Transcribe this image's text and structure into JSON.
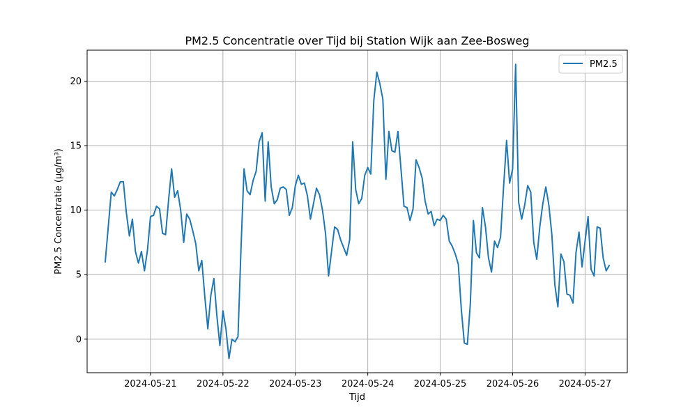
{
  "chart_data": {
    "type": "line",
    "title": "PM2.5 Concentratie over Tijd bij Station Wijk aan Zee-Bosweg",
    "xlabel": "Tijd",
    "ylabel": "PM2.5 Concentratie (µg/m³)",
    "xlim": [
      "2024-05-20T03:00",
      "2024-05-27T14:00"
    ],
    "ylim": [
      -2.6,
      22.4
    ],
    "x_ticks": [
      "2024-05-21",
      "2024-05-22",
      "2024-05-23",
      "2024-05-24",
      "2024-05-25",
      "2024-05-26",
      "2024-05-27"
    ],
    "y_ticks": [
      0,
      5,
      10,
      15,
      20
    ],
    "y_tick_labels": [
      "0",
      "5",
      "10",
      "15",
      "20"
    ],
    "grid": true,
    "legend_position": "top-right",
    "line_color": "#1f77b4",
    "series": [
      {
        "name": "PM2.5",
        "color": "#1f77b4",
        "x": [
          "2024-05-20T09:00",
          "2024-05-20T10:00",
          "2024-05-20T11:00",
          "2024-05-20T12:00",
          "2024-05-20T13:00",
          "2024-05-20T14:00",
          "2024-05-20T15:00",
          "2024-05-20T16:00",
          "2024-05-20T17:00",
          "2024-05-20T18:00",
          "2024-05-20T19:00",
          "2024-05-20T20:00",
          "2024-05-20T21:00",
          "2024-05-20T22:00",
          "2024-05-20T23:00",
          "2024-05-21T00:00",
          "2024-05-21T01:00",
          "2024-05-21T02:00",
          "2024-05-21T03:00",
          "2024-05-21T04:00",
          "2024-05-21T05:00",
          "2024-05-21T06:00",
          "2024-05-21T07:00",
          "2024-05-21T08:00",
          "2024-05-21T09:00",
          "2024-05-21T10:00",
          "2024-05-21T11:00",
          "2024-05-21T12:00",
          "2024-05-21T13:00",
          "2024-05-21T14:00",
          "2024-05-21T15:00",
          "2024-05-21T16:00",
          "2024-05-21T17:00",
          "2024-05-21T18:00",
          "2024-05-21T19:00",
          "2024-05-21T20:00",
          "2024-05-21T21:00",
          "2024-05-21T22:00",
          "2024-05-21T23:00",
          "2024-05-22T00:00",
          "2024-05-22T01:00",
          "2024-05-22T02:00",
          "2024-05-22T03:00",
          "2024-05-22T04:00",
          "2024-05-22T05:00",
          "2024-05-22T06:00",
          "2024-05-22T07:00",
          "2024-05-22T08:00",
          "2024-05-22T09:00",
          "2024-05-22T10:00",
          "2024-05-22T11:00",
          "2024-05-22T12:00",
          "2024-05-22T13:00",
          "2024-05-22T14:00",
          "2024-05-22T15:00",
          "2024-05-22T16:00",
          "2024-05-22T17:00",
          "2024-05-22T18:00",
          "2024-05-22T19:00",
          "2024-05-22T20:00",
          "2024-05-22T21:00",
          "2024-05-22T22:00",
          "2024-05-22T23:00",
          "2024-05-23T00:00",
          "2024-05-23T01:00",
          "2024-05-23T02:00",
          "2024-05-23T03:00",
          "2024-05-23T04:00",
          "2024-05-23T05:00",
          "2024-05-23T06:00",
          "2024-05-23T07:00",
          "2024-05-23T08:00",
          "2024-05-23T09:00",
          "2024-05-23T10:00",
          "2024-05-23T11:00",
          "2024-05-23T12:00",
          "2024-05-23T13:00",
          "2024-05-23T14:00",
          "2024-05-23T15:00",
          "2024-05-23T16:00",
          "2024-05-23T17:00",
          "2024-05-23T18:00",
          "2024-05-23T19:00",
          "2024-05-23T20:00",
          "2024-05-23T21:00",
          "2024-05-23T22:00",
          "2024-05-23T23:00",
          "2024-05-24T00:00",
          "2024-05-24T01:00",
          "2024-05-24T02:00",
          "2024-05-24T03:00",
          "2024-05-24T04:00",
          "2024-05-24T05:00",
          "2024-05-24T06:00",
          "2024-05-24T07:00",
          "2024-05-24T08:00",
          "2024-05-24T09:00",
          "2024-05-24T10:00",
          "2024-05-24T11:00",
          "2024-05-24T12:00",
          "2024-05-24T13:00",
          "2024-05-24T14:00",
          "2024-05-24T15:00",
          "2024-05-24T16:00",
          "2024-05-24T17:00",
          "2024-05-24T18:00",
          "2024-05-24T19:00",
          "2024-05-24T20:00",
          "2024-05-24T21:00",
          "2024-05-24T22:00",
          "2024-05-24T23:00",
          "2024-05-25T00:00",
          "2024-05-25T01:00",
          "2024-05-25T02:00",
          "2024-05-25T03:00",
          "2024-05-25T04:00",
          "2024-05-25T05:00",
          "2024-05-25T06:00",
          "2024-05-25T07:00",
          "2024-05-25T08:00",
          "2024-05-25T09:00",
          "2024-05-25T10:00",
          "2024-05-25T11:00",
          "2024-05-25T12:00",
          "2024-05-25T13:00",
          "2024-05-25T14:00",
          "2024-05-25T15:00",
          "2024-05-25T16:00",
          "2024-05-25T17:00",
          "2024-05-25T18:00",
          "2024-05-25T19:00",
          "2024-05-25T20:00",
          "2024-05-25T21:00",
          "2024-05-25T22:00",
          "2024-05-25T23:00",
          "2024-05-26T00:00",
          "2024-05-26T01:00",
          "2024-05-26T02:00",
          "2024-05-26T03:00",
          "2024-05-26T04:00",
          "2024-05-26T05:00",
          "2024-05-26T06:00",
          "2024-05-26T07:00",
          "2024-05-26T08:00",
          "2024-05-26T09:00",
          "2024-05-26T10:00",
          "2024-05-26T11:00",
          "2024-05-26T12:00",
          "2024-05-26T13:00",
          "2024-05-26T14:00",
          "2024-05-26T15:00",
          "2024-05-26T16:00",
          "2024-05-26T17:00",
          "2024-05-26T18:00",
          "2024-05-26T19:00",
          "2024-05-26T20:00",
          "2024-05-26T21:00",
          "2024-05-26T22:00",
          "2024-05-26T23:00",
          "2024-05-27T00:00",
          "2024-05-27T01:00",
          "2024-05-27T02:00",
          "2024-05-27T03:00",
          "2024-05-27T04:00",
          "2024-05-27T05:00",
          "2024-05-27T06:00",
          "2024-05-27T07:00",
          "2024-05-27T08:00"
        ],
        "values": [
          6.0,
          8.7,
          11.4,
          11.1,
          11.6,
          12.2,
          12.2,
          9.8,
          8.0,
          9.3,
          6.8,
          5.9,
          6.8,
          5.3,
          6.9,
          9.5,
          9.6,
          10.3,
          10.1,
          8.2,
          8.1,
          10.8,
          13.2,
          11.0,
          11.5,
          10.0,
          7.5,
          9.7,
          9.3,
          8.4,
          7.4,
          5.3,
          6.1,
          3.3,
          0.8,
          3.4,
          4.7,
          1.8,
          -0.5,
          2.2,
          0.8,
          -1.5,
          0.0,
          -0.2,
          0.2,
          7.1,
          13.2,
          11.5,
          11.2,
          12.3,
          13.0,
          15.3,
          16.0,
          10.7,
          15.3,
          11.8,
          10.5,
          10.8,
          11.7,
          11.8,
          11.6,
          9.6,
          10.2,
          11.9,
          12.7,
          12.0,
          12.1,
          11.1,
          9.3,
          10.5,
          11.7,
          11.2,
          10.0,
          8.2,
          4.9,
          6.8,
          8.7,
          8.5,
          7.7,
          7.1,
          6.5,
          7.7,
          15.3,
          11.6,
          10.5,
          10.9,
          12.7,
          13.3,
          12.8,
          18.5,
          20.7,
          19.8,
          18.6,
          12.4,
          16.1,
          14.6,
          14.5,
          16.1,
          13.2,
          10.3,
          10.2,
          9.2,
          10.1,
          13.9,
          13.3,
          12.5,
          10.7,
          9.7,
          9.9,
          8.8,
          9.3,
          9.2,
          9.6,
          9.3,
          7.6,
          7.2,
          6.6,
          5.8,
          2.3,
          -0.3,
          -0.4,
          2.8,
          9.2,
          6.7,
          6.3,
          10.2,
          8.7,
          6.3,
          5.2,
          7.6,
          7.1,
          7.9,
          11.8,
          15.4,
          12.1,
          13.2,
          21.3,
          10.6,
          9.3,
          10.4,
          11.9,
          11.4,
          7.5,
          6.2,
          8.7,
          10.5,
          11.8,
          10.4,
          8.1,
          4.2,
          2.5,
          6.6,
          6.0,
          3.5,
          3.4,
          2.8,
          6.7,
          8.3,
          5.6,
          7.6,
          9.5,
          5.4,
          4.9,
          8.7,
          8.6,
          6.3,
          5.3,
          5.7
        ]
      }
    ]
  }
}
